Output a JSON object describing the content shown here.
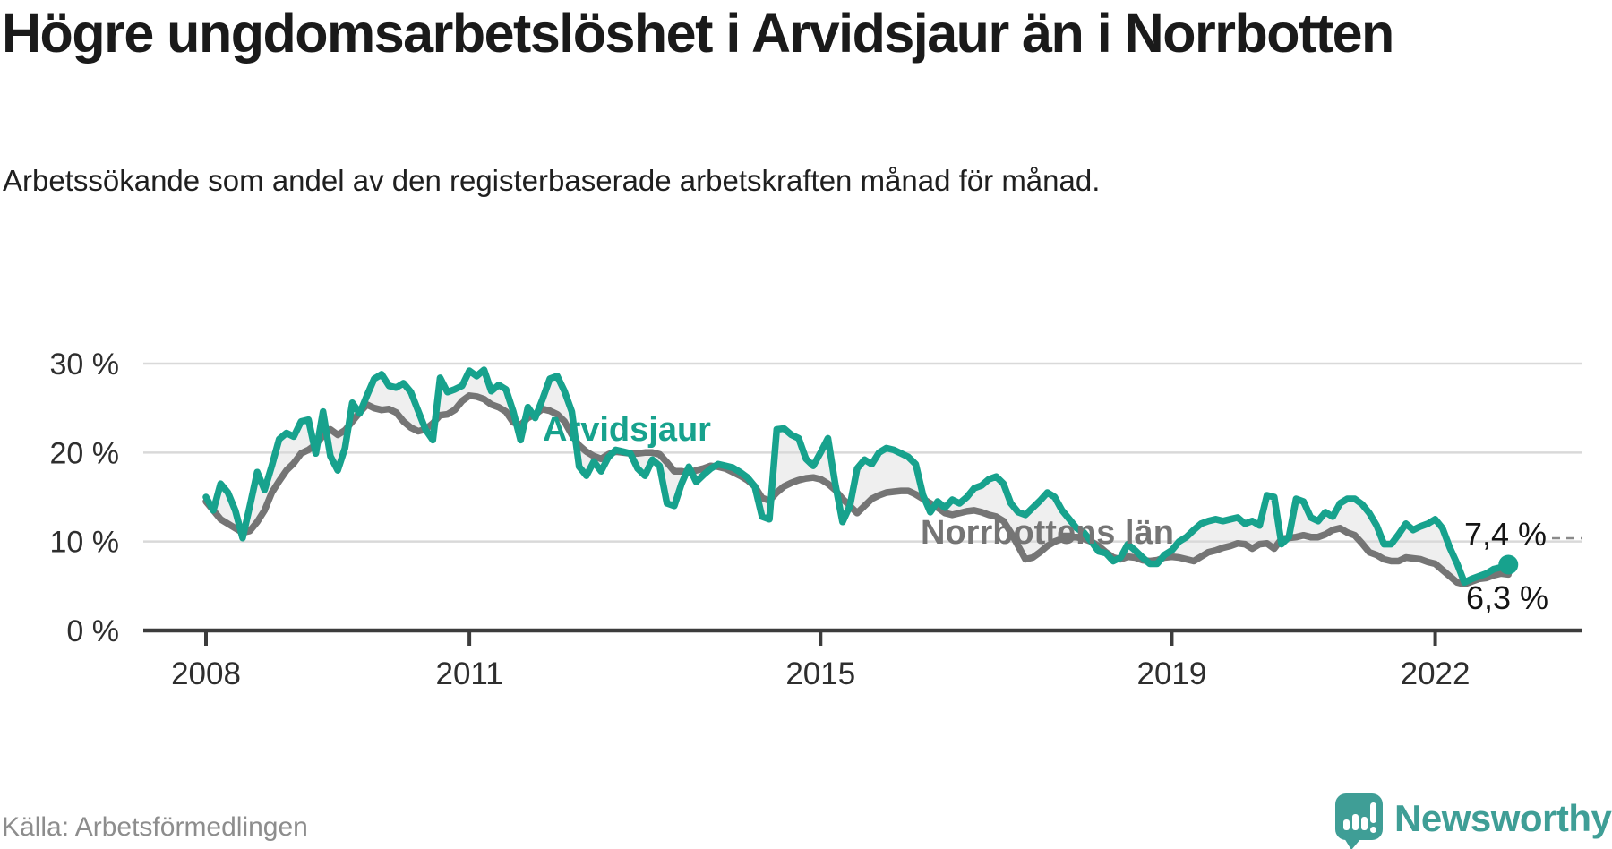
{
  "header": {
    "title": "Högre ungdomsarbetslöshet i Arvidsjaur än i Norrbotten",
    "subtitle": "Arbetssökande som andel av den registerbaserade arbetskraften månad för månad."
  },
  "chart_data": {
    "type": "line",
    "x_start": "2008-01",
    "x_end": "2022-11",
    "x_interval": "monthly",
    "ylim": [
      0,
      32
    ],
    "grid": true,
    "y_ticks": [
      {
        "value": 0,
        "label": "0 %"
      },
      {
        "value": 10,
        "label": "10 %"
      },
      {
        "value": 20,
        "label": "20 %"
      },
      {
        "value": 30,
        "label": "30 %"
      }
    ],
    "x_ticks": [
      {
        "year": 2008,
        "label": "2008"
      },
      {
        "year": 2011,
        "label": "2011"
      },
      {
        "year": 2015,
        "label": "2015"
      },
      {
        "year": 2019,
        "label": "2019"
      },
      {
        "year": 2022,
        "label": "2022"
      }
    ],
    "series": [
      {
        "name": "Arvidsjaur",
        "color": "#17a28d",
        "last_value_label": "7,4 %",
        "values": [
          15.0,
          13.5,
          16.5,
          15.5,
          13.5,
          10.4,
          14.0,
          17.8,
          15.8,
          18.5,
          21.5,
          22.2,
          21.8,
          23.5,
          23.7,
          19.9,
          24.6,
          19.6,
          18.0,
          20.5,
          25.6,
          24.4,
          26.4,
          28.3,
          28.8,
          27.5,
          27.3,
          27.8,
          26.8,
          24.7,
          22.6,
          21.4,
          28.4,
          26.8,
          27.1,
          27.5,
          29.2,
          28.6,
          29.3,
          26.9,
          27.6,
          27.1,
          24.6,
          21.4,
          25.1,
          23.9,
          26.0,
          28.3,
          28.6,
          26.9,
          24.6,
          18.4,
          17.4,
          19.0,
          17.9,
          19.5,
          20.3,
          20.1,
          19.9,
          18.2,
          17.4,
          19.2,
          18.5,
          14.3,
          14.0,
          16.5,
          18.4,
          16.7,
          17.5,
          18.2,
          18.7,
          18.5,
          18.3,
          17.8,
          17.2,
          16.2,
          12.8,
          12.5,
          22.6,
          22.7,
          22.0,
          21.6,
          19.3,
          18.5,
          20.0,
          21.6,
          16.5,
          12.2,
          14.0,
          18.2,
          19.2,
          18.7,
          20.0,
          20.5,
          20.3,
          19.9,
          19.5,
          18.7,
          15.2,
          13.3,
          14.5,
          13.8,
          14.7,
          14.3,
          15.0,
          16.0,
          16.3,
          17.0,
          17.3,
          16.5,
          14.3,
          13.3,
          13.0,
          13.8,
          14.6,
          15.5,
          15.0,
          13.5,
          12.5,
          11.5,
          11.0,
          10.0,
          8.9,
          8.7,
          7.8,
          8.2,
          9.7,
          9.0,
          8.2,
          7.5,
          7.5,
          8.5,
          9.0,
          10.0,
          10.5,
          11.3,
          12.0,
          12.3,
          12.5,
          12.3,
          12.5,
          12.7,
          12.0,
          12.3,
          11.8,
          15.2,
          15.0,
          9.7,
          10.5,
          14.8,
          14.5,
          12.7,
          12.3,
          13.3,
          12.8,
          14.3,
          14.8,
          14.8,
          14.2,
          13.2,
          11.8,
          9.7,
          9.7,
          10.8,
          12.0,
          11.3,
          11.7,
          12.0,
          12.5,
          11.5,
          9.3,
          7.5,
          5.4,
          5.8,
          6.1,
          6.4,
          6.9,
          7.1,
          7.4
        ]
      },
      {
        "name": "Norrbottens län",
        "color": "#757575",
        "last_value_label": "6,3 %",
        "values": [
          14.5,
          13.5,
          12.5,
          12.0,
          11.5,
          11.0,
          11.2,
          12.2,
          13.5,
          15.5,
          16.8,
          18.0,
          18.8,
          19.9,
          20.3,
          20.9,
          21.9,
          22.6,
          22.0,
          22.5,
          23.5,
          24.5,
          25.4,
          25.0,
          24.8,
          24.9,
          24.5,
          23.5,
          22.8,
          22.4,
          22.6,
          23.3,
          24.2,
          24.3,
          24.8,
          25.8,
          26.4,
          26.3,
          26.0,
          25.4,
          25.1,
          24.6,
          23.4,
          23.1,
          23.9,
          24.3,
          24.9,
          24.7,
          24.3,
          23.5,
          22.0,
          20.8,
          20.1,
          19.6,
          19.3,
          19.8,
          20.1,
          20.0,
          19.9,
          19.9,
          20.0,
          20.0,
          19.8,
          18.9,
          17.9,
          17.9,
          17.7,
          18.0,
          18.2,
          18.5,
          18.4,
          18.2,
          17.8,
          17.4,
          16.9,
          16.2,
          14.9,
          14.6,
          15.5,
          16.2,
          16.6,
          16.9,
          17.1,
          17.2,
          17.0,
          16.5,
          15.8,
          14.8,
          14.0,
          13.2,
          14.0,
          14.8,
          15.2,
          15.5,
          15.6,
          15.7,
          15.7,
          15.3,
          14.8,
          14.3,
          13.8,
          13.2,
          13.0,
          13.2,
          13.4,
          13.5,
          13.3,
          13.0,
          12.8,
          12.3,
          11.0,
          9.5,
          8.0,
          8.2,
          8.8,
          9.5,
          10.0,
          10.3,
          10.5,
          10.5,
          10.3,
          10.0,
          9.5,
          8.8,
          8.2,
          8.0,
          8.3,
          8.2,
          7.9,
          7.8,
          7.9,
          8.2,
          8.3,
          8.2,
          8.0,
          7.8,
          8.3,
          8.8,
          9.0,
          9.3,
          9.5,
          9.8,
          9.7,
          9.2,
          9.7,
          9.8,
          9.2,
          10.3,
          10.4,
          10.5,
          10.7,
          10.5,
          10.5,
          10.8,
          11.3,
          11.5,
          11.0,
          10.7,
          9.8,
          8.8,
          8.5,
          8.0,
          7.8,
          7.8,
          8.2,
          8.1,
          8.0,
          7.7,
          7.5,
          6.8,
          6.1,
          5.4,
          5.2,
          5.5,
          5.8,
          5.9,
          6.2,
          6.4,
          6.3
        ]
      }
    ],
    "fill_between_color": "#efefef",
    "legend_position": "inline-labels"
  },
  "colors": {
    "accent": "#17a28d",
    "gray_series": "#757575",
    "grid": "#d9d9d9",
    "axis": "#3c3c3c",
    "tick_text": "#2e2e2e",
    "annotation": "#141414",
    "leader_dash": "#8a8a8a",
    "source_text": "#8d8d8d",
    "logo": "#3f9e96"
  },
  "source": {
    "text": "Källa: Arbetsförmedlingen"
  },
  "logo": {
    "brand": "Newsworthy",
    "icon": "bar-chart-speech-bubble-icon"
  }
}
